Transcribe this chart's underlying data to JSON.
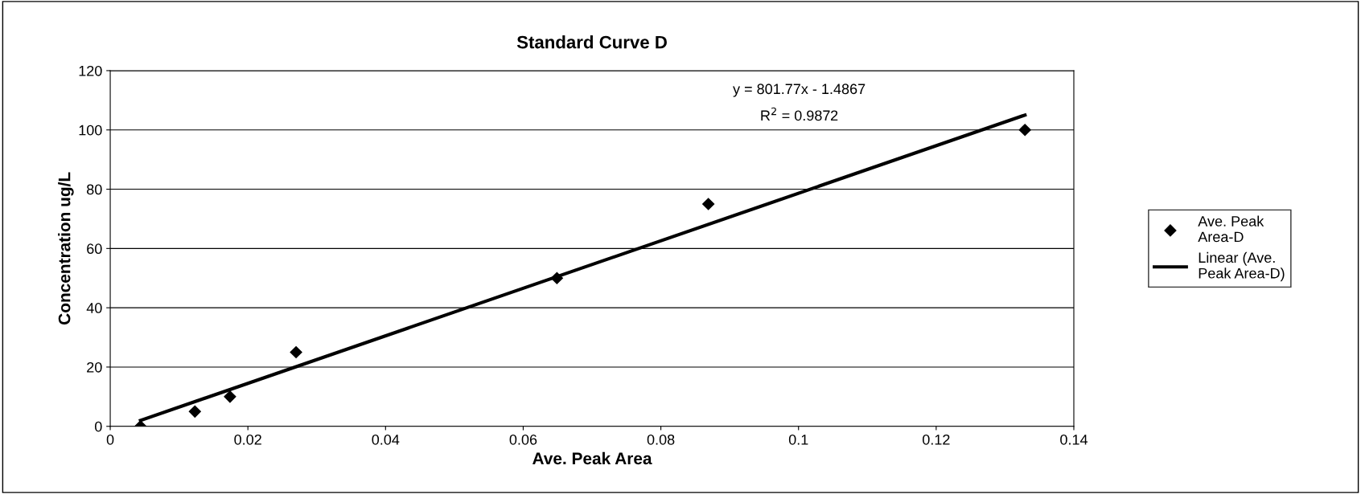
{
  "chart_data": {
    "type": "scatter",
    "title": "Standard Curve D",
    "xlabel": "Ave. Peak Area",
    "ylabel": "Concentration ug/L",
    "annotations": [
      "y = 801.77x - 1.4867",
      "R$^{2}$ = 0.9872"
    ],
    "series": [
      {
        "name": "Ave. Peak Area-D",
        "color": "#000000",
        "marker": "diamond",
        "x": [
          0.0044,
          0.0123,
          0.0174,
          0.027,
          0.0649,
          0.0869,
          0.1329
        ],
        "values": [
          0,
          5,
          10,
          25,
          50,
          75,
          100
        ]
      },
      {
        "name": "Linear (Ave. Peak Area-D)",
        "type": "line",
        "color": "#000000",
        "line_style": "solid",
        "x": [
          0.0044,
          0.1329
        ],
        "values": [
          2,
          105
        ]
      }
    ],
    "xlim": [
      0,
      0.14
    ],
    "xticks": [
      0,
      0.02,
      0.04,
      0.06,
      0.08,
      0.1,
      0.12,
      0.14
    ],
    "ylim": [
      0,
      120
    ],
    "yticks": [
      0,
      20,
      40,
      60,
      80,
      100,
      120
    ],
    "grid": "y",
    "legend": "right"
  }
}
